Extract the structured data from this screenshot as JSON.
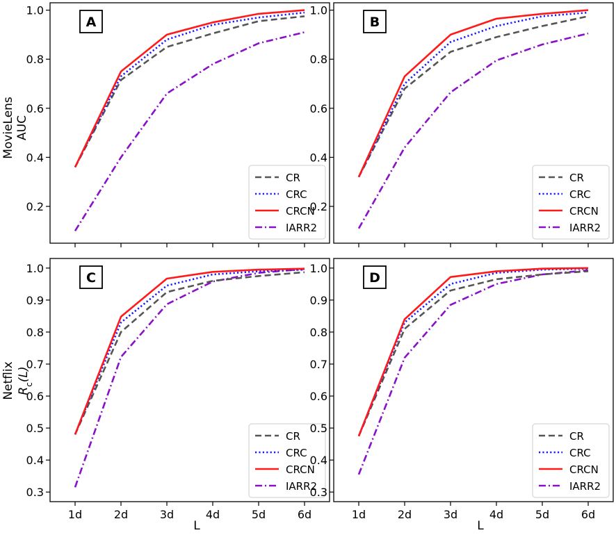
{
  "figure": {
    "x_label": "L",
    "row_labels": [
      {
        "dataset": "MovieLens",
        "metric": "AUC"
      },
      {
        "dataset": "Netflix",
        "metric_prefix": "R",
        "metric_sub": "c",
        "metric_suffix": "(L)"
      }
    ]
  },
  "colors": {
    "CR": "#555555",
    "CRC": "#1a1aff",
    "CRCN": "#ff1a1a",
    "IARR2": "#8a10c8"
  },
  "chart_data": [
    {
      "type": "line",
      "panel": "A",
      "categories": [
        "1d",
        "2d",
        "3d",
        "4d",
        "5d",
        "6d"
      ],
      "ylim": [
        0.05,
        1.03
      ],
      "yticks": [
        0.2,
        0.4,
        0.6,
        0.8,
        1.0
      ],
      "ytick_labels": [
        "0.2",
        "0.4",
        "0.6",
        "0.8",
        "1.0"
      ],
      "xlabel": "",
      "ylabel": "MovieLens AUC",
      "legend": "bottom-right",
      "series": [
        {
          "name": "CR",
          "values": [
            0.36,
            0.715,
            0.85,
            0.905,
            0.955,
            0.975
          ]
        },
        {
          "name": "CRC",
          "values": [
            0.36,
            0.73,
            0.88,
            0.94,
            0.97,
            0.99
          ]
        },
        {
          "name": "CRCN",
          "values": [
            0.36,
            0.75,
            0.9,
            0.95,
            0.985,
            1.0
          ]
        },
        {
          "name": "IARR2",
          "values": [
            0.1,
            0.4,
            0.66,
            0.78,
            0.865,
            0.91
          ]
        }
      ]
    },
    {
      "type": "line",
      "panel": "B",
      "categories": [
        "1d",
        "2d",
        "3d",
        "4d",
        "5d",
        "6d"
      ],
      "ylim": [
        0.05,
        1.03
      ],
      "yticks": [
        0.2,
        0.4,
        0.6,
        0.8,
        1.0
      ],
      "ytick_labels": [
        "0.2",
        "0.4",
        "0.6",
        "0.8",
        "1.0"
      ],
      "xlabel": "",
      "ylabel": "",
      "legend": "bottom-right",
      "series": [
        {
          "name": "CR",
          "values": [
            0.32,
            0.68,
            0.83,
            0.89,
            0.935,
            0.975
          ]
        },
        {
          "name": "CRC",
          "values": [
            0.32,
            0.7,
            0.87,
            0.935,
            0.975,
            0.99
          ]
        },
        {
          "name": "CRCN",
          "values": [
            0.32,
            0.73,
            0.9,
            0.965,
            0.985,
            1.0
          ]
        },
        {
          "name": "IARR2",
          "values": [
            0.11,
            0.44,
            0.665,
            0.795,
            0.86,
            0.905
          ]
        }
      ]
    },
    {
      "type": "line",
      "panel": "C",
      "categories": [
        "1d",
        "2d",
        "3d",
        "4d",
        "5d",
        "6d"
      ],
      "ylim": [
        0.27,
        1.03
      ],
      "yticks": [
        0.3,
        0.4,
        0.5,
        0.6,
        0.7,
        0.8,
        0.9,
        1.0
      ],
      "ytick_labels": [
        "0.3",
        "0.4",
        "0.5",
        "0.6",
        "0.7",
        "0.8",
        "0.9",
        "1.0"
      ],
      "xlabel": "L",
      "ylabel": "Netflix R_c(L)",
      "legend": "bottom-right",
      "series": [
        {
          "name": "CR",
          "values": [
            0.48,
            0.8,
            0.925,
            0.96,
            0.975,
            0.987
          ]
        },
        {
          "name": "CRC",
          "values": [
            0.48,
            0.83,
            0.945,
            0.98,
            0.99,
            0.995
          ]
        },
        {
          "name": "CRCN",
          "values": [
            0.48,
            0.848,
            0.967,
            0.988,
            0.995,
            0.998
          ]
        },
        {
          "name": "IARR2",
          "values": [
            0.315,
            0.722,
            0.887,
            0.958,
            0.985,
            0.997
          ]
        }
      ]
    },
    {
      "type": "line",
      "panel": "D",
      "categories": [
        "1d",
        "2d",
        "3d",
        "4d",
        "5d",
        "6d"
      ],
      "ylim": [
        0.27,
        1.03
      ],
      "yticks": [
        0.3,
        0.4,
        0.5,
        0.6,
        0.7,
        0.8,
        0.9,
        1.0
      ],
      "ytick_labels": [
        "0.3",
        "0.4",
        "0.5",
        "0.6",
        "0.7",
        "0.8",
        "0.9",
        "1.0"
      ],
      "xlabel": "L",
      "ylabel": "",
      "legend": "bottom-right",
      "series": [
        {
          "name": "CR",
          "values": [
            0.475,
            0.81,
            0.93,
            0.965,
            0.98,
            0.99
          ]
        },
        {
          "name": "CRC",
          "values": [
            0.475,
            0.83,
            0.95,
            0.985,
            0.995,
            0.998
          ]
        },
        {
          "name": "CRCN",
          "values": [
            0.475,
            0.84,
            0.972,
            0.99,
            0.998,
            1.0
          ]
        },
        {
          "name": "IARR2",
          "values": [
            0.355,
            0.72,
            0.885,
            0.95,
            0.98,
            0.993
          ]
        }
      ]
    }
  ]
}
